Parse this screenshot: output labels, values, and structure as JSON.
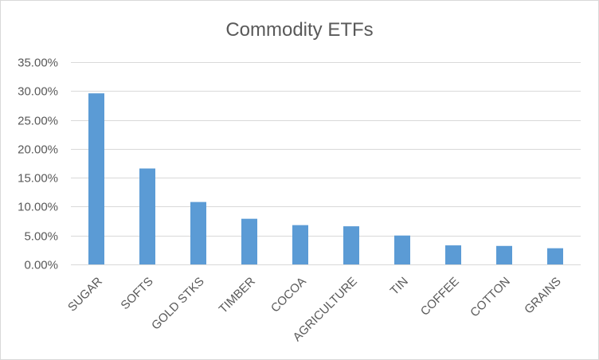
{
  "chart_data": {
    "type": "bar",
    "title": "Commodity ETFs",
    "xlabel": "",
    "ylabel": "",
    "categories": [
      "SUGAR",
      "SOFTS",
      "GOLD STKS",
      "TIMBER",
      "COCOA",
      "AGRICULTURE",
      "TIN",
      "COFFEE",
      "COTTON",
      "GRAINS"
    ],
    "values": [
      29.6,
      16.6,
      10.8,
      7.9,
      6.8,
      6.6,
      5.0,
      3.3,
      3.2,
      2.8
    ],
    "value_unit": "percent",
    "ylim": [
      0,
      35
    ],
    "y_ticks": [
      0,
      5,
      10,
      15,
      20,
      25,
      30,
      35
    ],
    "y_tick_labels": [
      "0.00%",
      "5.00%",
      "10.00%",
      "15.00%",
      "20.00%",
      "25.00%",
      "30.00%",
      "35.00%"
    ],
    "grid": true,
    "legend": "none",
    "bar_color": "#5b9bd5"
  }
}
